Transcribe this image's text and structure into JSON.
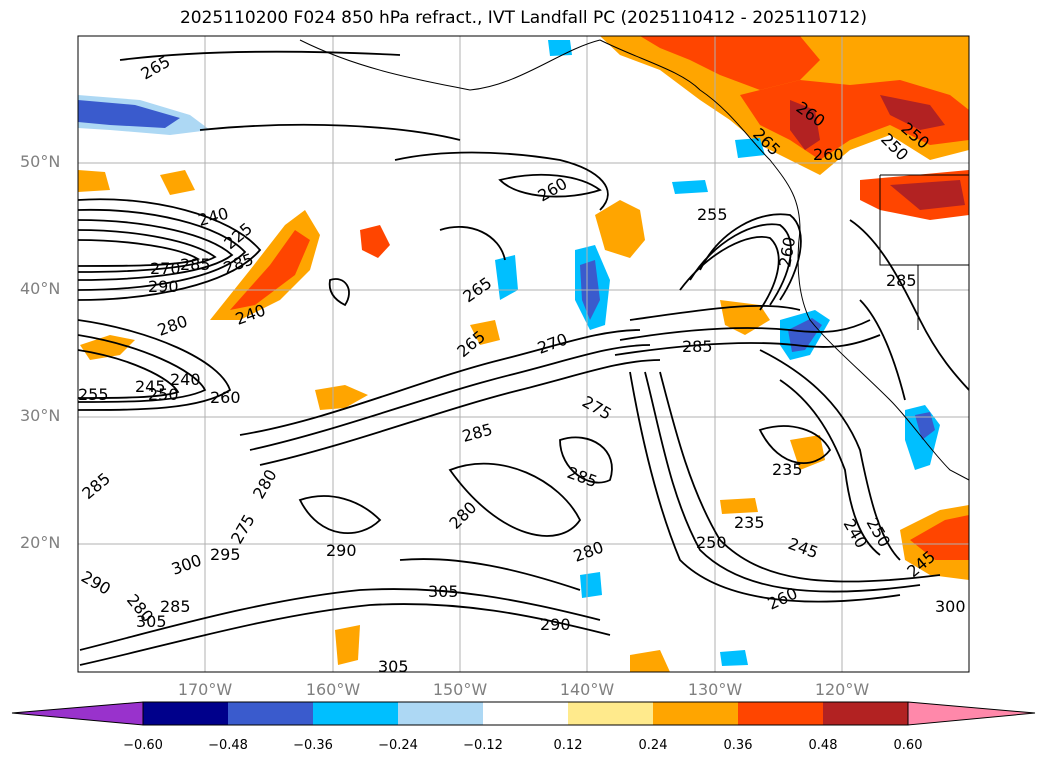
{
  "title": "2025110200 F024 850 hPa refract., IVT Landfall PC (2025110412 - 2025110712)",
  "map": {
    "lat_labels": [
      "50°N",
      "40°N",
      "30°N",
      "20°N"
    ],
    "lon_labels": [
      "170°W",
      "160°W",
      "150°W",
      "140°W",
      "130°W",
      "120°W"
    ],
    "contour_labels": [
      "265",
      "260",
      "265",
      "260",
      "250",
      "250",
      "255",
      "260",
      "240",
      "225",
      "285",
      "270",
      "290",
      "285",
      "265",
      "265",
      "270",
      "280",
      "240",
      "255",
      "245",
      "240",
      "250",
      "260",
      "285",
      "275",
      "285",
      "285",
      "280",
      "235",
      "275",
      "280",
      "290",
      "295",
      "300",
      "280",
      "305",
      "285",
      "285",
      "290",
      "305",
      "305",
      "290",
      "280",
      "235",
      "250",
      "245",
      "240",
      "250",
      "260",
      "260",
      "300",
      "245",
      "285"
    ]
  },
  "colorbar": {
    "ticks": [
      "−0.60",
      "−0.48",
      "−0.36",
      "−0.24",
      "−0.12",
      "0.12",
      "0.24",
      "0.36",
      "0.48",
      "0.60"
    ],
    "colors": [
      "#9932cc",
      "#00008b",
      "#3a5bcd",
      "#00bfff",
      "#add8f4",
      "#ffffff",
      "#ffea8c",
      "#ffa500",
      "#ff4500",
      "#b22222",
      "#ff88aa"
    ]
  }
}
